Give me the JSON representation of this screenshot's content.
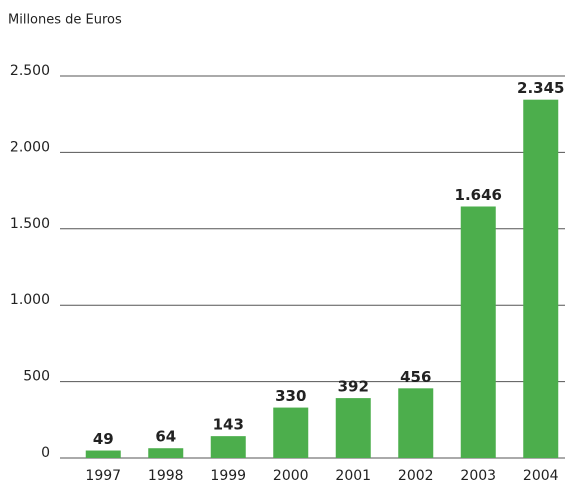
{
  "chart_data": {
    "type": "bar",
    "title": "Millones de Euros",
    "categories": [
      "1997",
      "1998",
      "1999",
      "2000",
      "2001",
      "2002",
      "2003",
      "2004"
    ],
    "values": [
      49,
      64,
      143,
      330,
      392,
      456,
      1646,
      2345
    ],
    "value_labels": [
      "49",
      "64",
      "143",
      "330",
      "392",
      "456",
      "1.646",
      "2.345"
    ],
    "color": "#4cae4c",
    "ylim": [
      0,
      2500
    ],
    "yticks": [
      0,
      500,
      {
        "value": 1000,
        "label": "1.000"
      },
      {
        "value": 1500,
        "label": "1.500"
      },
      {
        "value": 2000,
        "label": "2.000"
      },
      {
        "value": 2500,
        "label": "2.500"
      }
    ],
    "grid": true
  }
}
